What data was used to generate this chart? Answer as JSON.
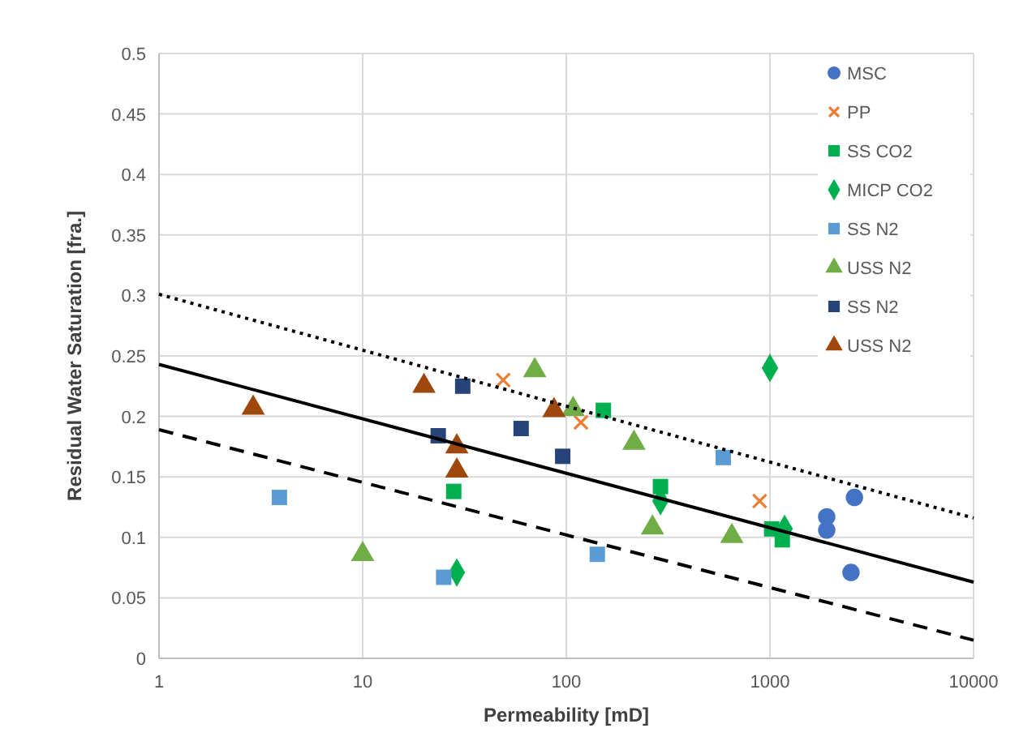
{
  "chart_data": {
    "type": "scatter",
    "xlabel": "Permeability [mD]",
    "ylabel": "Residual Water Saturation [fra.]",
    "log": "x",
    "grid": true,
    "legend": "top right",
    "xlim": [
      1,
      10000
    ],
    "xticks": [
      1,
      10,
      100,
      1000,
      10000
    ],
    "ylim": [
      0,
      0.5
    ],
    "yticks": [
      0,
      0.05,
      0.1,
      0.15,
      0.2,
      0.25,
      0.3,
      0.35,
      0.4,
      0.45,
      0.5
    ],
    "series": [
      {
        "name": "MSC",
        "color": "#4472c4",
        "marker": "circle",
        "x": [
          1900,
          1900,
          2600,
          2500
        ],
        "values": [
          0.117,
          0.106,
          0.133,
          0.071
        ]
      },
      {
        "name": "PP",
        "color": "#ed7d31",
        "marker": "cross",
        "x": [
          49,
          118,
          890
        ],
        "values": [
          0.23,
          0.195,
          0.13
        ]
      },
      {
        "name": "SS CO2",
        "color": "#00b050",
        "marker": "square",
        "x": [
          28,
          152,
          290,
          1020,
          1150
        ],
        "values": [
          0.138,
          0.205,
          0.142,
          0.107,
          0.098
        ]
      },
      {
        "name": "MICP CO2",
        "color": "#00b050",
        "marker": "diamond",
        "x": [
          29,
          290,
          1000,
          1180
        ],
        "values": [
          0.071,
          0.13,
          0.24,
          0.107
        ]
      },
      {
        "name": "SS N2",
        "color": "#5b9bd5",
        "marker": "square",
        "x": [
          3.9,
          25,
          142,
          590
        ],
        "values": [
          0.133,
          0.067,
          0.086,
          0.166
        ]
      },
      {
        "name": "USS N2",
        "color": "#70ad47",
        "marker": "triangle",
        "x": [
          10,
          70,
          108,
          215,
          265,
          650
        ],
        "values": [
          0.086,
          0.238,
          0.206,
          0.178,
          0.108,
          0.101
        ]
      },
      {
        "name": "SS N2",
        "color": "#264478",
        "marker": "square",
        "x": [
          31,
          23.5,
          60,
          96
        ],
        "values": [
          0.225,
          0.184,
          0.19,
          0.167
        ]
      },
      {
        "name": "USS N2",
        "color": "#9e480e",
        "marker": "triangle",
        "x": [
          2.9,
          20,
          29,
          29,
          87
        ],
        "values": [
          0.207,
          0.225,
          0.175,
          0.155,
          0.205
        ]
      },
      {
        "type": "line",
        "color": "#000000",
        "line_style": "solid",
        "marker": "none",
        "x": [
          1,
          10000
        ],
        "values": [
          0.243,
          0.063
        ]
      },
      {
        "type": "line",
        "color": "#000000",
        "line_style": "dotted",
        "marker": "none",
        "x": [
          1,
          10000
        ],
        "values": [
          0.301,
          0.116
        ]
      },
      {
        "type": "line",
        "color": "#000000",
        "line_style": "dashed",
        "marker": "none",
        "x": [
          1,
          10000
        ],
        "values": [
          0.189,
          0.015
        ]
      }
    ]
  }
}
